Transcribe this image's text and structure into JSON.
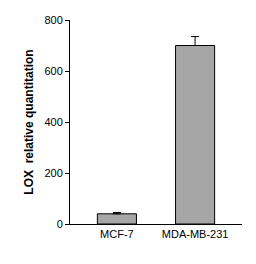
{
  "chart_data": {
    "type": "bar",
    "y_label": "LOX  relative quantitation",
    "categories": [
      "MCF-7",
      "MDA-MB-231"
    ],
    "values": [
      40,
      700
    ],
    "errors": [
      5,
      35
    ],
    "color": "#a6a6a6",
    "ylim": [
      0,
      800
    ],
    "yticks": [
      0,
      200,
      400,
      600,
      800
    ],
    "grid": false
  }
}
